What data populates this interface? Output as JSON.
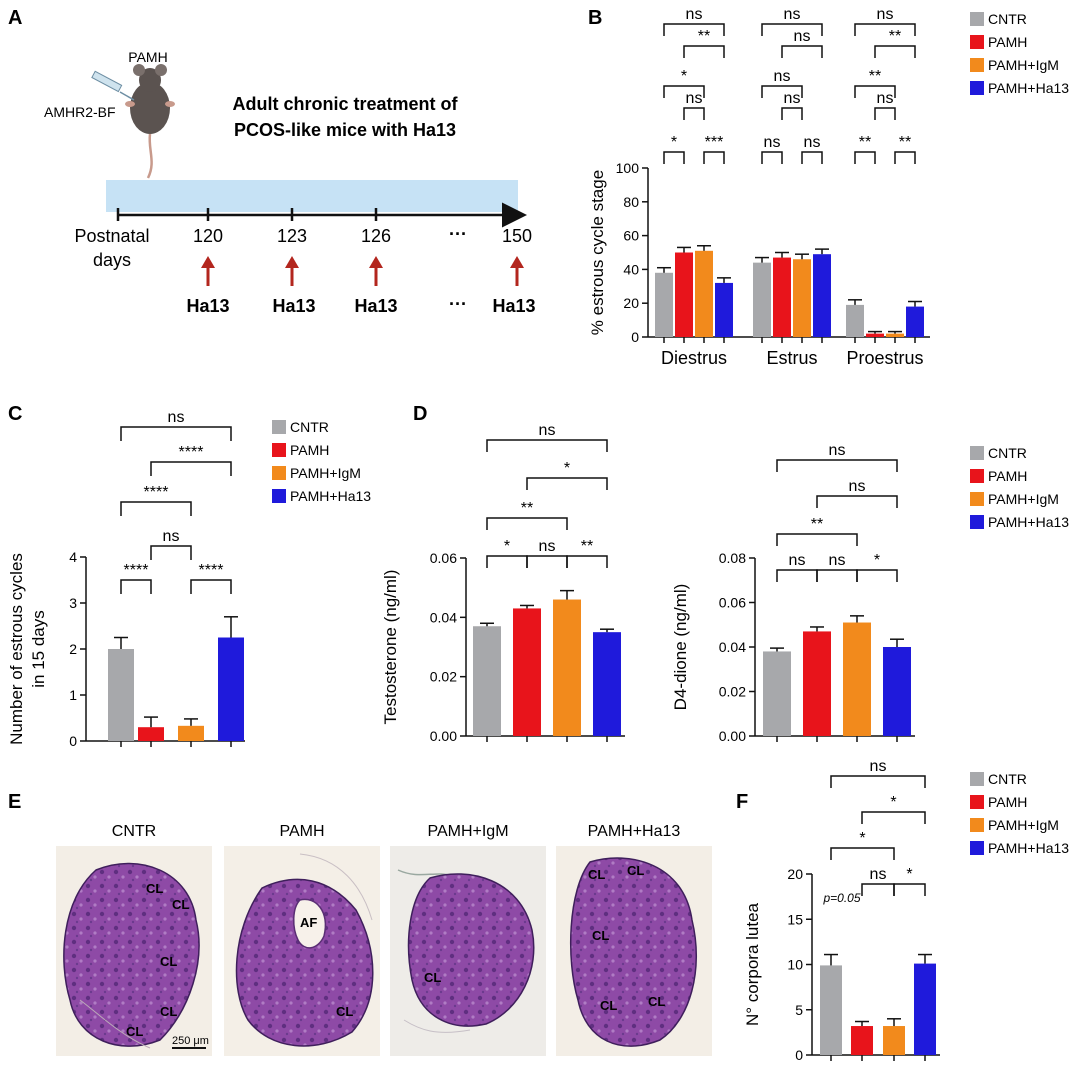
{
  "panel_labels": {
    "a": "A",
    "b": "B",
    "c": "C",
    "d": "D",
    "e": "E",
    "f": "F"
  },
  "legend": {
    "entries": [
      "CNTR",
      "PAMH",
      "PAMH+IgM",
      "PAMH+Ha13"
    ],
    "colors": {
      "CNTR": "#a7a8ab",
      "PAMH": "#e8141b",
      "PAMH+IgM": "#f28a1c",
      "PAMH+Ha13": "#1f1adb"
    }
  },
  "panel_a": {
    "mouse_label": "PAMH",
    "injection_label": "AMHR2-BF",
    "title_line1": "Adult chronic treatment of",
    "title_line2": "PCOS-like mice with Ha13",
    "axis_label_line1": "Postnatal",
    "axis_label_line2": "days",
    "days": [
      "120",
      "123",
      "126",
      "···",
      "150"
    ],
    "treatments": [
      "Ha13",
      "Ha13",
      "Ha13",
      "···",
      "Ha13"
    ],
    "icons": [
      "mouse-icon",
      "syringe-icon",
      "arrow-up-icon"
    ]
  },
  "panel_e": {
    "titles": [
      "CNTR",
      "PAMH",
      "PAMH+IgM",
      "PAMH+Ha13"
    ],
    "scale_bar": "250 μm",
    "cl": "CL",
    "af": "AF"
  },
  "chart_data": [
    {
      "id": "B",
      "type": "bar",
      "categories": [
        "Diestrus",
        "Estrus",
        "Proestrus"
      ],
      "ylabel": "% estrous cycle stage",
      "ylim": [
        0,
        100
      ],
      "yticks": [
        "0",
        "20",
        "40",
        "60",
        "80",
        "100"
      ],
      "series": [
        {
          "name": "CNTR",
          "values": [
            38,
            44,
            19
          ]
        },
        {
          "name": "PAMH",
          "values": [
            50,
            47,
            2
          ]
        },
        {
          "name": "PAMH+IgM",
          "values": [
            51,
            46,
            2
          ]
        },
        {
          "name": "PAMH+Ha13",
          "values": [
            32,
            49,
            18
          ]
        }
      ],
      "significance": [
        {
          "group": "Diestrus",
          "pairs": [
            [
              "CNTR",
              "PAMH",
              "*"
            ],
            [
              "PAMH+IgM",
              "PAMH+Ha13",
              "***"
            ],
            [
              "PAMH",
              "PAMH+IgM",
              "ns"
            ],
            [
              "CNTR",
              "PAMH+IgM",
              "*"
            ],
            [
              "PAMH",
              "PAMH+Ha13",
              "**"
            ],
            [
              "CNTR",
              "PAMH+Ha13",
              "ns"
            ]
          ]
        },
        {
          "group": "Estrus",
          "pairs": [
            [
              "CNTR",
              "PAMH",
              "ns"
            ],
            [
              "PAMH+IgM",
              "PAMH+Ha13",
              "ns"
            ],
            [
              "PAMH",
              "PAMH+IgM",
              "ns"
            ],
            [
              "CNTR",
              "PAMH+IgM",
              "ns"
            ],
            [
              "PAMH",
              "PAMH+Ha13",
              "ns"
            ],
            [
              "CNTR",
              "PAMH+Ha13",
              "ns"
            ]
          ]
        },
        {
          "group": "Proestrus",
          "pairs": [
            [
              "CNTR",
              "PAMH",
              "**"
            ],
            [
              "PAMH+IgM",
              "PAMH+Ha13",
              "**"
            ],
            [
              "PAMH",
              "PAMH+IgM",
              "ns"
            ],
            [
              "CNTR",
              "PAMH+IgM",
              "**"
            ],
            [
              "PAMH",
              "PAMH+Ha13",
              "**"
            ],
            [
              "CNTR",
              "PAMH+Ha13",
              "ns"
            ]
          ]
        }
      ]
    },
    {
      "id": "C",
      "type": "bar",
      "categories": [
        "CNTR",
        "PAMH",
        "PAMH+IgM",
        "PAMH+Ha13"
      ],
      "ylabel_line1": "Number of estrous cycles",
      "ylabel_line2": "in 15 days",
      "ylim": [
        0,
        4
      ],
      "yticks": [
        "0",
        "1",
        "2",
        "3",
        "4"
      ],
      "values": [
        2.0,
        0.3,
        0.33,
        2.25
      ],
      "sem": [
        0.25,
        0.22,
        0.15,
        0.45
      ],
      "significance": [
        [
          "CNTR",
          "PAMH",
          "****"
        ],
        [
          "PAMH+IgM",
          "PAMH+Ha13",
          "****"
        ],
        [
          "PAMH",
          "PAMH+IgM",
          "ns"
        ],
        [
          "CNTR",
          "PAMH+IgM",
          "****"
        ],
        [
          "PAMH",
          "PAMH+Ha13",
          "****"
        ],
        [
          "CNTR",
          "PAMH+Ha13",
          "ns"
        ]
      ]
    },
    {
      "id": "D-left",
      "type": "bar",
      "categories": [
        "CNTR",
        "PAMH",
        "PAMH+IgM",
        "PAMH+Ha13"
      ],
      "ylabel": "Testosterone (ng/ml)",
      "ylim": [
        0,
        0.06
      ],
      "yticks": [
        "0.00",
        "0.02",
        "0.04",
        "0.06"
      ],
      "values": [
        0.037,
        0.043,
        0.046,
        0.035
      ],
      "sem": [
        0.001,
        0.001,
        0.003,
        0.001
      ],
      "significance": [
        [
          "CNTR",
          "PAMH",
          "*"
        ],
        [
          "PAMH",
          "PAMH+IgM",
          "ns"
        ],
        [
          "PAMH+IgM",
          "PAMH+Ha13",
          "**"
        ],
        [
          "CNTR",
          "PAMH+IgM",
          "**"
        ],
        [
          "PAMH",
          "PAMH+Ha13",
          "*"
        ],
        [
          "CNTR",
          "PAMH+Ha13",
          "ns"
        ]
      ]
    },
    {
      "id": "D-right",
      "type": "bar",
      "categories": [
        "CNTR",
        "PAMH",
        "PAMH+IgM",
        "PAMH+Ha13"
      ],
      "ylabel": "D4-dione (ng/ml)",
      "ylim": [
        0,
        0.08
      ],
      "yticks": [
        "0.00",
        "0.02",
        "0.04",
        "0.06",
        "0.08"
      ],
      "values": [
        0.038,
        0.047,
        0.051,
        0.04
      ],
      "sem": [
        0.0015,
        0.002,
        0.003,
        0.0035
      ],
      "significance": [
        [
          "CNTR",
          "PAMH",
          "ns"
        ],
        [
          "PAMH",
          "PAMH+IgM",
          "ns"
        ],
        [
          "PAMH+IgM",
          "PAMH+Ha13",
          "*"
        ],
        [
          "CNTR",
          "PAMH+IgM",
          "**"
        ],
        [
          "PAMH",
          "PAMH+Ha13",
          "ns"
        ],
        [
          "CNTR",
          "PAMH+Ha13",
          "ns"
        ]
      ]
    },
    {
      "id": "F",
      "type": "bar",
      "categories": [
        "CNTR",
        "PAMH",
        "PAMH+IgM",
        "PAMH+Ha13"
      ],
      "ylabel": "N° corpora lutea",
      "ylim": [
        0,
        20
      ],
      "yticks": [
        "0",
        "5",
        "10",
        "15",
        "20"
      ],
      "values": [
        9.9,
        3.2,
        3.2,
        10.1
      ],
      "sem": [
        1.2,
        0.5,
        0.8,
        1.0
      ],
      "pvalue_note": "p=0.05",
      "significance": [
        [
          "PAMH",
          "PAMH+IgM",
          "ns"
        ],
        [
          "PAMH+IgM",
          "PAMH+Ha13",
          "*"
        ],
        [
          "CNTR",
          "PAMH+IgM",
          "*"
        ],
        [
          "PAMH",
          "PAMH+Ha13",
          "*"
        ],
        [
          "CNTR",
          "PAMH+Ha13",
          "ns"
        ]
      ]
    }
  ]
}
